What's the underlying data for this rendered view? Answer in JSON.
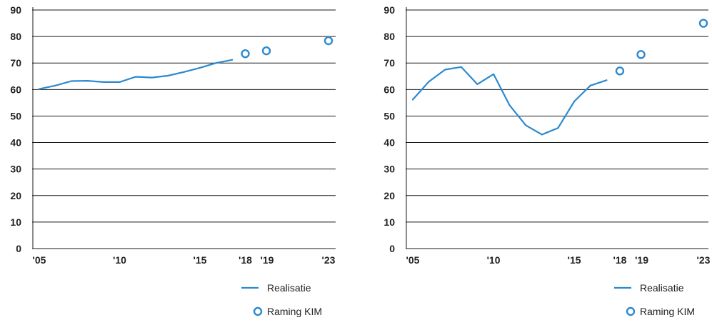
{
  "colors": {
    "series": "#2b8ad0",
    "grid": "#1a1a1a",
    "text": "#222222"
  },
  "chart_data": [
    {
      "type": "line",
      "ylim": [
        0,
        90
      ],
      "yticks": [
        0,
        10,
        20,
        30,
        40,
        50,
        60,
        70,
        80,
        90
      ],
      "xlim": [
        2005,
        2023
      ],
      "xticks": [
        {
          "x": 2005,
          "label": "'05"
        },
        {
          "x": 2010,
          "label": "'10"
        },
        {
          "x": 2015,
          "label": "'15"
        },
        {
          "x": 2018,
          "label": "'18"
        },
        {
          "x": 2019,
          "label": "'19"
        },
        {
          "x": 2023,
          "label": "'23"
        }
      ],
      "grid": true,
      "legend": "bottom-right",
      "series": [
        {
          "name": "Realisatie",
          "style": "line",
          "x": [
            2005,
            2006,
            2007,
            2008,
            2009,
            2010,
            2011,
            2012,
            2013,
            2014,
            2015,
            2016,
            2017
          ],
          "values": [
            60.2,
            61.5,
            63.2,
            63.3,
            62.8,
            62.8,
            64.8,
            64.5,
            65.2,
            66.6,
            68.2,
            70.0,
            71.2
          ]
        },
        {
          "name": "Raming KIM",
          "style": "marker",
          "x": [
            2018,
            2019,
            2023
          ],
          "values": [
            73.5,
            74.6,
            78.4
          ]
        }
      ]
    },
    {
      "type": "line",
      "ylim": [
        0,
        90
      ],
      "yticks": [
        0,
        10,
        20,
        30,
        40,
        50,
        60,
        70,
        80,
        90
      ],
      "xlim": [
        2005,
        2023
      ],
      "xticks": [
        {
          "x": 2005,
          "label": "'05"
        },
        {
          "x": 2010,
          "label": "'10"
        },
        {
          "x": 2015,
          "label": "'15"
        },
        {
          "x": 2018,
          "label": "'18"
        },
        {
          "x": 2019,
          "label": "'19"
        },
        {
          "x": 2023,
          "label": "'23"
        }
      ],
      "grid": true,
      "legend": "bottom-right",
      "series": [
        {
          "name": "Realisatie",
          "style": "line",
          "x": [
            2005,
            2006,
            2007,
            2008,
            2009,
            2010,
            2011,
            2012,
            2013,
            2014,
            2015,
            2016,
            2017
          ],
          "values": [
            56.2,
            63.0,
            67.5,
            68.5,
            62.0,
            65.8,
            54.0,
            46.5,
            43.0,
            45.5,
            55.5,
            61.5,
            63.5
          ]
        },
        {
          "name": "Raming KIM",
          "style": "marker",
          "x": [
            2018,
            2019,
            2023
          ],
          "values": [
            67.0,
            73.2,
            85.0
          ]
        }
      ]
    }
  ]
}
